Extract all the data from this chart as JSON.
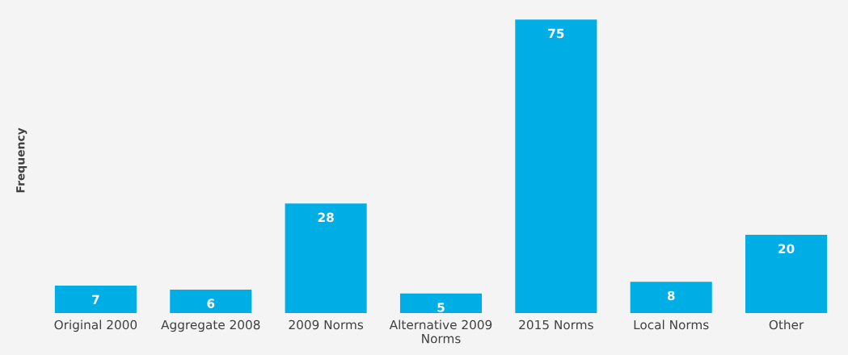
{
  "chart_data": {
    "type": "bar",
    "ylabel": "Frequency",
    "categories": [
      "Original 2000",
      "Aggregate 2008",
      "2009 Norms",
      "Alternative 2009 Norms",
      "2015 Norms",
      "Local Norms",
      "Other"
    ],
    "values": [
      7,
      6,
      28,
      5,
      75,
      8,
      20
    ],
    "color": "#00aee6",
    "data_labels": true,
    "grid": false,
    "legend": false
  }
}
